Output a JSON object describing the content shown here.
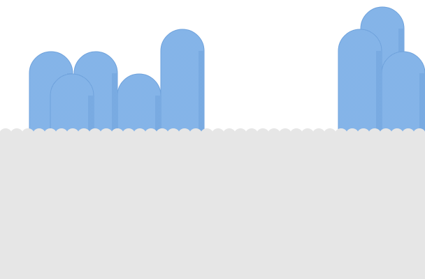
{
  "scene": {
    "background_color": "#ffffff",
    "ground_color": "#e6e6e6",
    "pillar_color": "#7fb0e6",
    "pillar_highlight": "#9cc3ee",
    "pillar_shade": "#6fa2dc",
    "pillar_count": 8
  }
}
